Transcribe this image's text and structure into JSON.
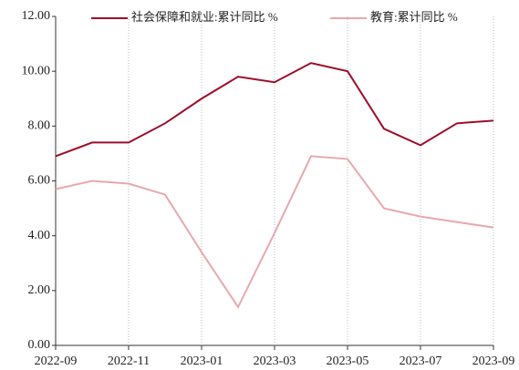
{
  "chart_data": {
    "type": "line",
    "categories": [
      "2022-09",
      null,
      "2022-11",
      null,
      "2023-01",
      null,
      "2023-03",
      null,
      "2023-05",
      null,
      "2023-07",
      null,
      "2023-09"
    ],
    "series": [
      {
        "name": "社会保障和就业:累计同比 %",
        "color": "#9b0e2a",
        "values": [
          6.9,
          7.4,
          7.4,
          8.1,
          9.0,
          9.8,
          9.6,
          10.3,
          10.0,
          7.9,
          7.3,
          8.1,
          8.2
        ]
      },
      {
        "name": "教育:累计同比 %",
        "color": "#e8a8ad",
        "values": [
          5.7,
          6.0,
          5.9,
          5.5,
          3.4,
          1.4,
          4.1,
          6.9,
          6.8,
          5.0,
          4.7,
          4.5,
          4.3
        ]
      }
    ],
    "ylim": [
      0,
      12
    ],
    "yticks": [
      {
        "value": 0,
        "label": "0.00"
      },
      {
        "value": 2,
        "label": "2.00"
      },
      {
        "value": 4,
        "label": "4.00"
      },
      {
        "value": 6,
        "label": "6.00"
      },
      {
        "value": 8,
        "label": "8.00"
      },
      {
        "value": 10,
        "label": "10.00"
      },
      {
        "value": 12,
        "label": "12.00"
      }
    ],
    "grid": true,
    "legend": "top"
  }
}
